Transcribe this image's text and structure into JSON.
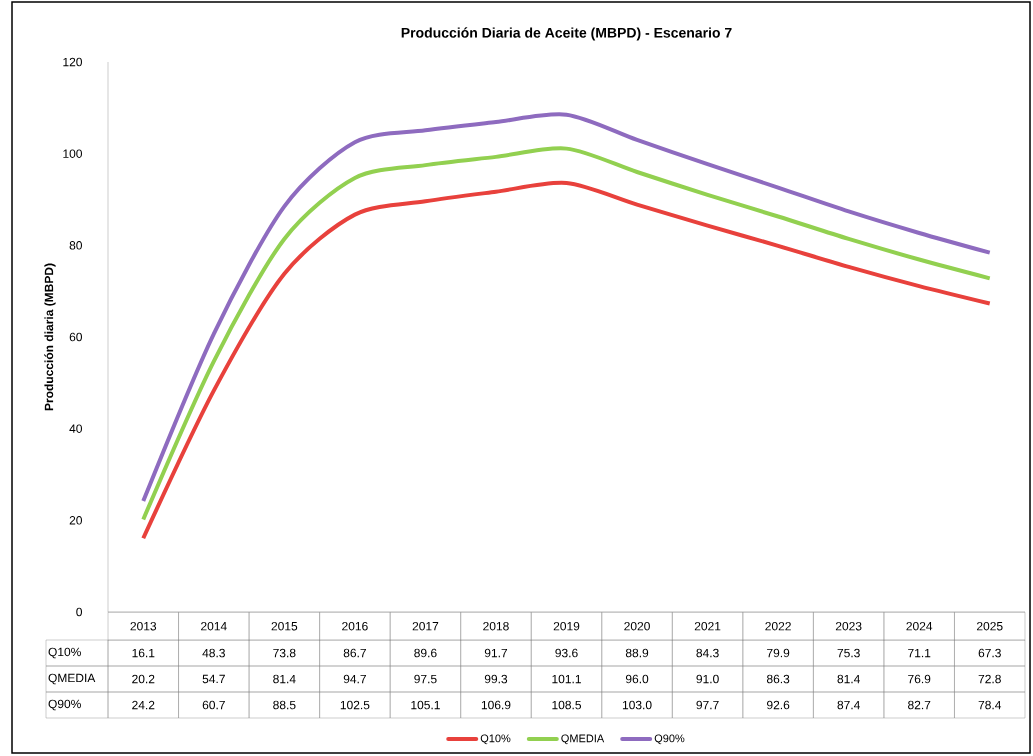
{
  "chart_data": {
    "type": "line",
    "title": "Producción Diaria de Aceite (MBPD) - Escenario 7",
    "ylabel": "Producción diaria (MBPD)",
    "categories": [
      "2013",
      "2014",
      "2015",
      "2016",
      "2017",
      "2018",
      "2019",
      "2020",
      "2021",
      "2022",
      "2023",
      "2024",
      "2025"
    ],
    "series": [
      {
        "name": "Q10%",
        "color": "#e8413c",
        "values": [
          16.1,
          48.3,
          73.8,
          86.7,
          89.6,
          91.7,
          93.6,
          88.9,
          84.3,
          79.9,
          75.3,
          71.1,
          67.3
        ],
        "value_labels": [
          "16.1",
          "48.3",
          "73.8",
          "86.7",
          "89.6",
          "91.7",
          "93.6",
          "88.9",
          "84.3",
          "79.9",
          "75.3",
          "71.1",
          "67.3"
        ]
      },
      {
        "name": "QMEDIA",
        "color": "#92d050",
        "values": [
          20.2,
          54.7,
          81.4,
          94.7,
          97.5,
          99.3,
          101.1,
          96.0,
          91.0,
          86.3,
          81.4,
          76.9,
          72.8
        ],
        "value_labels": [
          "20.2",
          "54.7",
          "81.4",
          "94.7",
          "97.5",
          "99.3",
          "101.1",
          "96.0",
          "91.0",
          "86.3",
          "81.4",
          "76.9",
          "72.8"
        ]
      },
      {
        "name": "Q90%",
        "color": "#8e6bbf",
        "values": [
          24.2,
          60.7,
          88.5,
          102.5,
          105.1,
          106.9,
          108.5,
          103.0,
          97.7,
          92.6,
          87.4,
          82.7,
          78.4
        ],
        "value_labels": [
          "24.2",
          "60.7",
          "88.5",
          "102.5",
          "105.1",
          "106.9",
          "108.5",
          "103.0",
          "97.7",
          "92.6",
          "87.4",
          "82.7",
          "78.4"
        ]
      }
    ],
    "ylim": [
      0,
      120
    ],
    "yticks": [
      0,
      20,
      40,
      60,
      80,
      100,
      120
    ],
    "legend": "bottom",
    "marker": "none",
    "line_style": "solid"
  }
}
